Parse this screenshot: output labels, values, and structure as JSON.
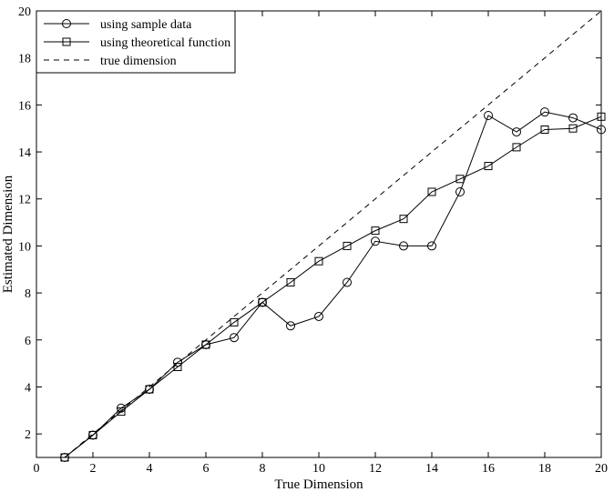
{
  "chart_data": {
    "type": "line",
    "xlabel": "True Dimension",
    "ylabel": "Estimated Dimension",
    "xlim": [
      0,
      20
    ],
    "ylim": [
      1,
      20
    ],
    "xticks": [
      0,
      2,
      4,
      6,
      8,
      10,
      12,
      14,
      16,
      18,
      20
    ],
    "yticks": [
      2,
      4,
      6,
      8,
      10,
      12,
      14,
      16,
      18,
      20
    ],
    "grid": false,
    "legend_position": "top-left",
    "series": [
      {
        "name": "using sample data",
        "marker": "circle",
        "style": "solid",
        "x": [
          1,
          2,
          3,
          4,
          5,
          6,
          7,
          8,
          9,
          10,
          11,
          12,
          13,
          14,
          15,
          16,
          17,
          18,
          19,
          20
        ],
        "y": [
          1.0,
          1.95,
          3.1,
          3.9,
          5.05,
          5.8,
          6.1,
          7.6,
          6.6,
          7.0,
          8.45,
          10.2,
          10.0,
          10.0,
          12.3,
          15.55,
          14.85,
          15.7,
          15.45,
          14.95
        ]
      },
      {
        "name": "using theoretical function",
        "marker": "square",
        "style": "solid",
        "x": [
          1,
          2,
          3,
          4,
          5,
          6,
          7,
          8,
          9,
          10,
          11,
          12,
          13,
          14,
          15,
          16,
          17,
          18,
          19,
          20
        ],
        "y": [
          1.0,
          1.95,
          2.95,
          3.9,
          4.85,
          5.8,
          6.75,
          7.6,
          8.45,
          9.35,
          10.0,
          10.65,
          11.15,
          12.3,
          12.85,
          13.4,
          14.2,
          14.95,
          15.0,
          15.5
        ]
      },
      {
        "name": "true dimension",
        "marker": "none",
        "style": "dashed",
        "x": [
          1,
          20
        ],
        "y": [
          1,
          20
        ]
      }
    ]
  }
}
